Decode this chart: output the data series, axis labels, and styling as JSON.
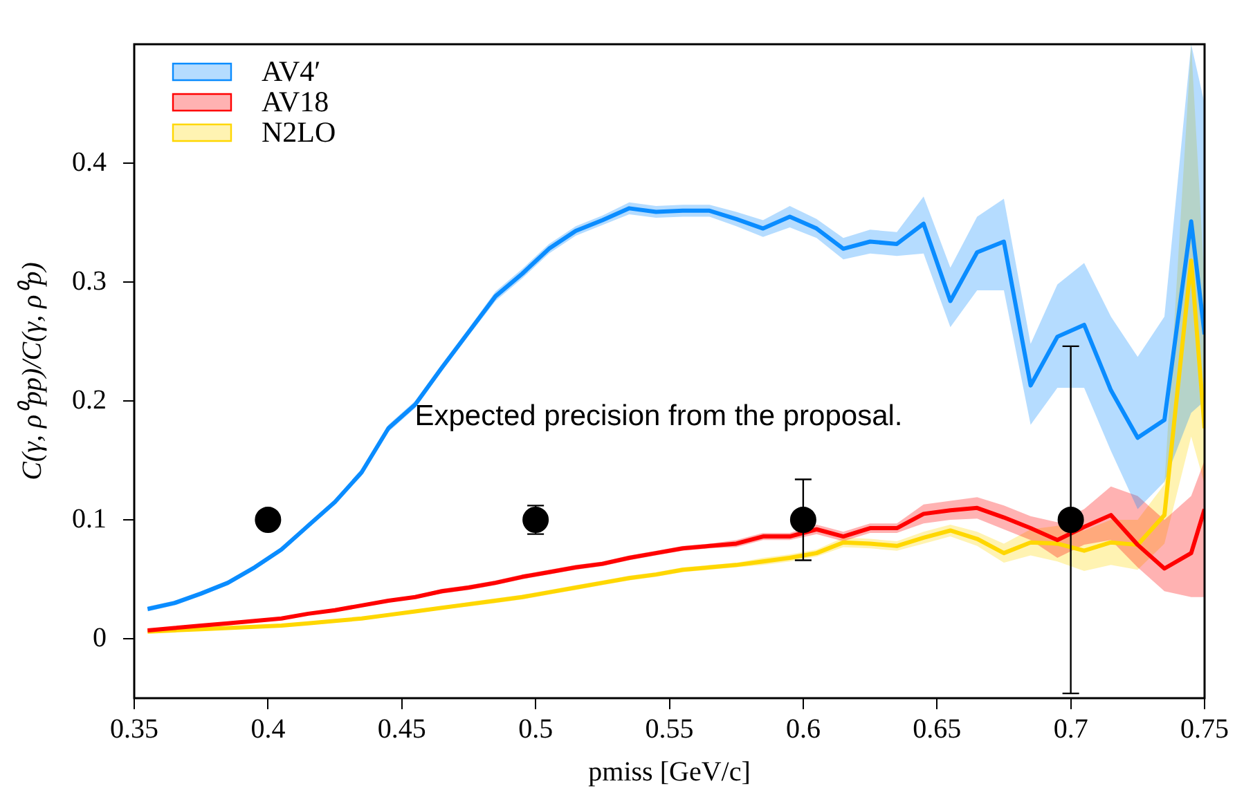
{
  "chart_data": {
    "type": "line",
    "xlabel": "pmiss [GeV/c]",
    "ylabel": "C(γ, ρ⁰pp)/C(γ, ρ⁰p)",
    "annotations": [
      "Expected precision from the proposal."
    ],
    "x": [
      0.355,
      0.365,
      0.375,
      0.385,
      0.395,
      0.405,
      0.415,
      0.425,
      0.435,
      0.445,
      0.455,
      0.465,
      0.475,
      0.485,
      0.495,
      0.505,
      0.515,
      0.525,
      0.535,
      0.545,
      0.555,
      0.565,
      0.575,
      0.585,
      0.595,
      0.605,
      0.615,
      0.625,
      0.635,
      0.645,
      0.655,
      0.665,
      0.675,
      0.685,
      0.695,
      0.705,
      0.715,
      0.725,
      0.735,
      0.745,
      0.75
    ],
    "series": [
      {
        "name": "AV4′",
        "color": "#0a8cff",
        "values": [
          0.025,
          0.03,
          0.038,
          0.047,
          0.06,
          0.075,
          0.095,
          0.115,
          0.14,
          0.177,
          0.197,
          0.228,
          0.258,
          0.288,
          0.307,
          0.328,
          0.343,
          0.352,
          0.362,
          0.359,
          0.36,
          0.36,
          0.353,
          0.345,
          0.355,
          0.345,
          0.328,
          0.334,
          0.332,
          0.349,
          0.284,
          0.325,
          0.334,
          0.213,
          0.254,
          0.264,
          0.209,
          0.169,
          0.184,
          0.351,
          0.256
        ],
        "lower": [
          0.023,
          0.028,
          0.036,
          0.045,
          0.058,
          0.073,
          0.093,
          0.113,
          0.137,
          0.174,
          0.194,
          0.225,
          0.255,
          0.284,
          0.303,
          0.324,
          0.339,
          0.348,
          0.357,
          0.354,
          0.355,
          0.355,
          0.347,
          0.338,
          0.346,
          0.337,
          0.319,
          0.324,
          0.322,
          0.324,
          0.262,
          0.293,
          0.293,
          0.18,
          0.211,
          0.211,
          0.158,
          0.109,
          0.132,
          0.19,
          0.2
        ],
        "upper": [
          0.027,
          0.032,
          0.04,
          0.049,
          0.062,
          0.077,
          0.097,
          0.117,
          0.143,
          0.18,
          0.2,
          0.231,
          0.261,
          0.292,
          0.311,
          0.332,
          0.347,
          0.356,
          0.367,
          0.364,
          0.365,
          0.365,
          0.359,
          0.352,
          0.364,
          0.353,
          0.337,
          0.344,
          0.342,
          0.372,
          0.312,
          0.355,
          0.37,
          0.248,
          0.298,
          0.316,
          0.271,
          0.237,
          0.271,
          0.5,
          0.45
        ]
      },
      {
        "name": "AV18",
        "color": "#ff0000",
        "values": [
          0.007,
          0.009,
          0.011,
          0.013,
          0.015,
          0.017,
          0.021,
          0.024,
          0.028,
          0.032,
          0.035,
          0.04,
          0.043,
          0.047,
          0.052,
          0.056,
          0.06,
          0.063,
          0.068,
          0.072,
          0.076,
          0.078,
          0.08,
          0.086,
          0.086,
          0.092,
          0.086,
          0.093,
          0.093,
          0.105,
          0.108,
          0.11,
          0.102,
          0.093,
          0.083,
          0.094,
          0.104,
          0.079,
          0.059,
          0.072,
          0.109
        ],
        "lower": [
          0.006,
          0.008,
          0.01,
          0.012,
          0.014,
          0.016,
          0.02,
          0.023,
          0.027,
          0.031,
          0.034,
          0.038,
          0.041,
          0.045,
          0.05,
          0.054,
          0.058,
          0.061,
          0.066,
          0.07,
          0.074,
          0.076,
          0.077,
          0.083,
          0.083,
          0.088,
          0.082,
          0.089,
          0.089,
          0.097,
          0.1,
          0.101,
          0.092,
          0.083,
          0.068,
          0.079,
          0.083,
          0.06,
          0.04,
          0.035,
          0.035
        ],
        "upper": [
          0.008,
          0.01,
          0.012,
          0.014,
          0.016,
          0.018,
          0.022,
          0.025,
          0.029,
          0.033,
          0.036,
          0.042,
          0.045,
          0.049,
          0.054,
          0.058,
          0.062,
          0.065,
          0.07,
          0.074,
          0.078,
          0.08,
          0.083,
          0.089,
          0.089,
          0.096,
          0.09,
          0.097,
          0.097,
          0.113,
          0.116,
          0.119,
          0.112,
          0.103,
          0.098,
          0.109,
          0.128,
          0.12,
          0.1,
          0.12,
          0.15
        ]
      },
      {
        "name": "N2LO",
        "color": "#ffd700",
        "values": [
          0.006,
          0.007,
          0.008,
          0.009,
          0.01,
          0.011,
          0.013,
          0.015,
          0.017,
          0.02,
          0.023,
          0.026,
          0.029,
          0.032,
          0.035,
          0.039,
          0.043,
          0.047,
          0.051,
          0.054,
          0.058,
          0.06,
          0.062,
          0.065,
          0.068,
          0.072,
          0.081,
          0.08,
          0.078,
          0.085,
          0.091,
          0.084,
          0.072,
          0.081,
          0.08,
          0.074,
          0.081,
          0.079,
          0.104,
          0.318,
          0.177
        ],
        "lower": [
          0.005,
          0.006,
          0.007,
          0.008,
          0.009,
          0.01,
          0.012,
          0.014,
          0.016,
          0.019,
          0.022,
          0.025,
          0.027,
          0.03,
          0.033,
          0.037,
          0.041,
          0.045,
          0.049,
          0.052,
          0.056,
          0.058,
          0.06,
          0.062,
          0.065,
          0.069,
          0.077,
          0.076,
          0.074,
          0.08,
          0.086,
          0.078,
          0.064,
          0.07,
          0.065,
          0.057,
          0.062,
          0.058,
          0.08,
          0.17,
          0.13
        ],
        "upper": [
          0.007,
          0.008,
          0.009,
          0.01,
          0.011,
          0.012,
          0.014,
          0.016,
          0.018,
          0.021,
          0.024,
          0.027,
          0.031,
          0.034,
          0.037,
          0.041,
          0.045,
          0.049,
          0.053,
          0.056,
          0.06,
          0.062,
          0.064,
          0.068,
          0.071,
          0.075,
          0.085,
          0.084,
          0.082,
          0.09,
          0.096,
          0.09,
          0.08,
          0.092,
          0.095,
          0.091,
          0.1,
          0.1,
          0.13,
          0.5,
          0.3
        ]
      },
      {
        "type": "scatter",
        "color": "#000000",
        "marker": "circle",
        "x": [
          0.4,
          0.5,
          0.6,
          0.7
        ],
        "values": [
          0.1,
          0.1,
          0.1,
          0.1
        ],
        "errors": [
          null,
          0.012,
          0.034,
          0.146
        ]
      }
    ],
    "xlim": [
      0.35,
      0.75
    ],
    "xticks": [
      0.35,
      0.4,
      0.45,
      0.5,
      0.55,
      0.6,
      0.65,
      0.7,
      0.75
    ],
    "ylim": [
      -0.05,
      0.5
    ],
    "yticks": [
      0,
      0.1,
      0.2,
      0.3,
      0.4
    ],
    "grid": false,
    "legend": "top left"
  }
}
